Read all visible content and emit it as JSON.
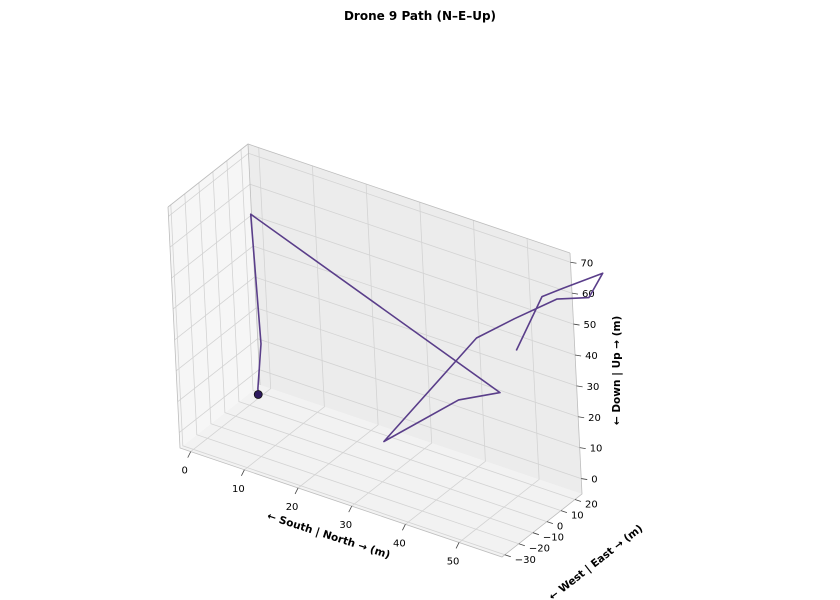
{
  "chart_data": {
    "type": "line",
    "projection": "3d",
    "title": "Drone 9 Path (N–E–Up)",
    "xlabel": "← South | North → (m)",
    "ylabel": "← West | East → (m)",
    "zlabel": "← Down | Up → (m)",
    "xlim": [
      -2,
      58
    ],
    "ylim": [
      -32,
      25
    ],
    "zlim": [
      -5,
      73
    ],
    "x_ticks": [
      "0",
      "10",
      "20",
      "30",
      "40",
      "50"
    ],
    "y_ticks": [
      "−30",
      "−20",
      "−10",
      "0",
      "10",
      "20"
    ],
    "z_ticks": [
      "0",
      "10",
      "20",
      "30",
      "40",
      "50",
      "60",
      "70"
    ],
    "grid": true,
    "series": [
      {
        "color": "#5a3e8a",
        "points": [
          [
            2,
            9,
            0
          ],
          [
            2,
            9,
            2
          ],
          [
            3,
            9,
            17
          ],
          [
            2,
            10,
            58
          ],
          [
            47,
            12,
            26
          ],
          [
            46,
            -13,
            32
          ],
          [
            32,
            -15,
            11
          ],
          [
            45,
            5,
            45
          ],
          [
            51,
            10,
            53
          ],
          [
            57,
            18,
            60
          ],
          [
            62,
            22,
            62
          ],
          [
            64,
            25,
            70
          ],
          [
            56,
            26,
            60
          ],
          [
            52,
            26,
            55
          ],
          [
            48,
            21,
            37
          ]
        ]
      }
    ],
    "start_marker": {
      "point": [
        2,
        9,
        0
      ],
      "color": "#2e1a5e"
    }
  }
}
